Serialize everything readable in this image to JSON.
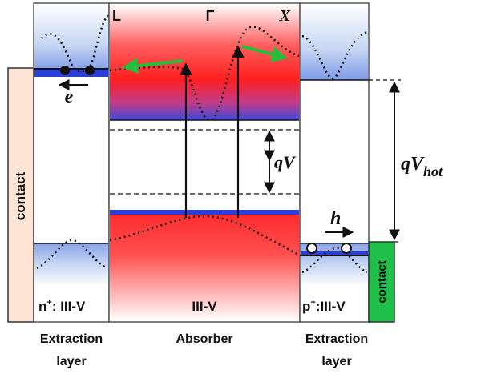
{
  "labels": {
    "valley_l": "L",
    "valley_gamma": "Γ",
    "valley_x": "X",
    "electron": "e",
    "hole": "h",
    "qv": "qV",
    "qvhot_main": "qV",
    "qvhot_sub": "hot",
    "contact_left": "contact",
    "contact_right": "contact",
    "n_layer_sup": "+",
    "n_layer_pre": "n",
    "n_layer_post": ": III-V",
    "absorber_material": "III-V",
    "p_layer_pre": "p",
    "p_layer_sup": "+",
    "p_layer_post": ":III-V",
    "caption_left_1": "Extraction",
    "caption_left_2": "layer",
    "caption_center": "Absorber",
    "caption_right_1": "Extraction",
    "caption_right_2": "layer"
  },
  "colors": {
    "red": "#ff2020",
    "blue": "#2a3fd8",
    "light_blue": "#b9cdf0",
    "contact_left_fill": "#fde3d3",
    "contact_right_fill": "#1fbf4a",
    "green_arrow": "#22c03a",
    "line": "#111111"
  }
}
